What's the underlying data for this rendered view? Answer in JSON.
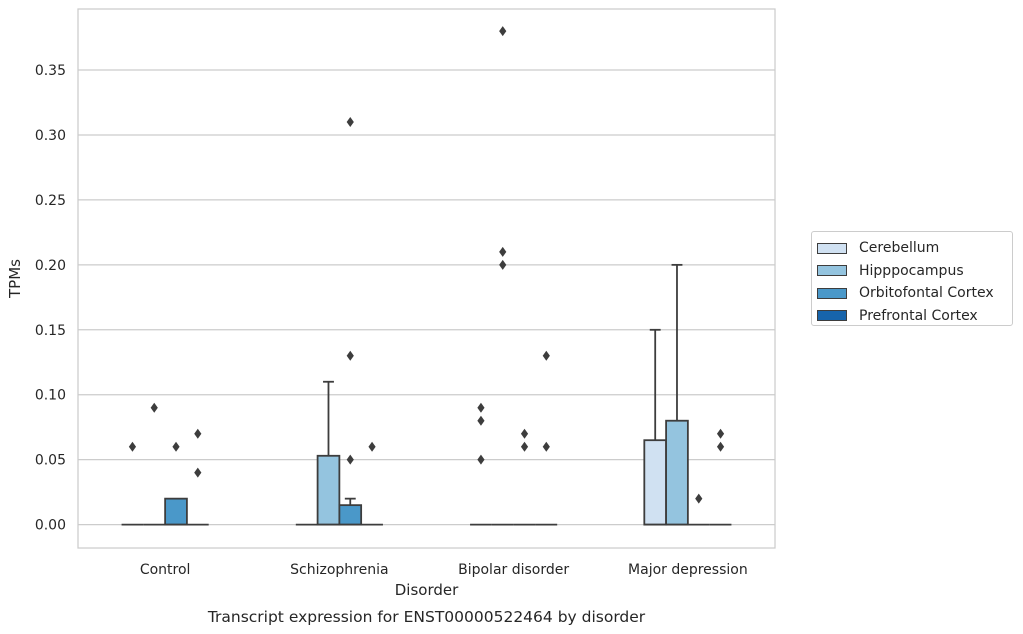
{
  "chart_data": {
    "type": "box",
    "title": "",
    "xlabel": "Disorder",
    "ylabel": "TPMs",
    "caption": "Transcript expression for ENST00000522464 by disorder",
    "categories": [
      "Control",
      "Schizophrenia",
      "Bipolar disorder",
      "Major depression"
    ],
    "ylim": [
      -0.018,
      0.397
    ],
    "yticks": [
      0.0,
      0.05,
      0.1,
      0.15,
      0.2,
      0.25,
      0.3,
      0.35
    ],
    "ytick_labels": [
      "0.00",
      "0.05",
      "0.10",
      "0.15",
      "0.20",
      "0.25",
      "0.30",
      "0.35"
    ],
    "grid": true,
    "legend_position": "right",
    "series": [
      {
        "name": "Cerebellum",
        "color": "#d0e1f2",
        "boxes": [
          {
            "q1": 0,
            "median": 0,
            "q3": 0,
            "whisker_low": 0,
            "whisker_high": 0,
            "outliers": [
              0.06
            ]
          },
          {
            "q1": 0,
            "median": 0,
            "q3": 0,
            "whisker_low": 0,
            "whisker_high": 0,
            "outliers": []
          },
          {
            "q1": 0,
            "median": 0,
            "q3": 0,
            "whisker_low": 0,
            "whisker_high": 0,
            "outliers": [
              0.05,
              0.08,
              0.09
            ]
          },
          {
            "q1": 0,
            "median": 0,
            "q3": 0.065,
            "whisker_low": 0,
            "whisker_high": 0.15,
            "outliers": []
          }
        ]
      },
      {
        "name": "Hipppocampus",
        "color": "#94c4df",
        "boxes": [
          {
            "q1": 0,
            "median": 0,
            "q3": 0,
            "whisker_low": 0,
            "whisker_high": 0,
            "outliers": [
              0.09
            ]
          },
          {
            "q1": 0,
            "median": 0,
            "q3": 0.053,
            "whisker_low": 0,
            "whisker_high": 0.11,
            "outliers": []
          },
          {
            "q1": 0,
            "median": 0,
            "q3": 0,
            "whisker_low": 0,
            "whisker_high": 0,
            "outliers": [
              0.2,
              0.21,
              0.38
            ]
          },
          {
            "q1": 0,
            "median": 0,
            "q3": 0.08,
            "whisker_low": 0,
            "whisker_high": 0.2,
            "outliers": []
          }
        ]
      },
      {
        "name": "Orbitofontal Cortex",
        "color": "#4a98c9",
        "boxes": [
          {
            "q1": 0,
            "median": 0,
            "q3": 0.02,
            "whisker_low": 0,
            "whisker_high": 0.02,
            "outliers": [
              0.06
            ]
          },
          {
            "q1": 0,
            "median": 0,
            "q3": 0.015,
            "whisker_low": 0,
            "whisker_high": 0.02,
            "outliers": [
              0.05,
              0.13,
              0.31
            ]
          },
          {
            "q1": 0,
            "median": 0,
            "q3": 0,
            "whisker_low": 0,
            "whisker_high": 0,
            "outliers": [
              0.06,
              0.07
            ]
          },
          {
            "q1": 0,
            "median": 0,
            "q3": 0,
            "whisker_low": 0,
            "whisker_high": 0,
            "outliers": [
              0.02
            ]
          }
        ]
      },
      {
        "name": "Prefrontal Cortex",
        "color": "#1764ab",
        "boxes": [
          {
            "q1": 0,
            "median": 0,
            "q3": 0,
            "whisker_low": 0,
            "whisker_high": 0,
            "outliers": [
              0.04,
              0.07
            ]
          },
          {
            "q1": 0,
            "median": 0,
            "q3": 0,
            "whisker_low": 0,
            "whisker_high": 0,
            "outliers": [
              0.06
            ]
          },
          {
            "q1": 0,
            "median": 0,
            "q3": 0,
            "whisker_low": 0,
            "whisker_high": 0,
            "outliers": [
              0.06,
              0.13
            ]
          },
          {
            "q1": 0,
            "median": 0,
            "q3": 0,
            "whisker_low": 0,
            "whisker_high": 0,
            "outliers": [
              0.06,
              0.07
            ]
          }
        ]
      }
    ]
  }
}
